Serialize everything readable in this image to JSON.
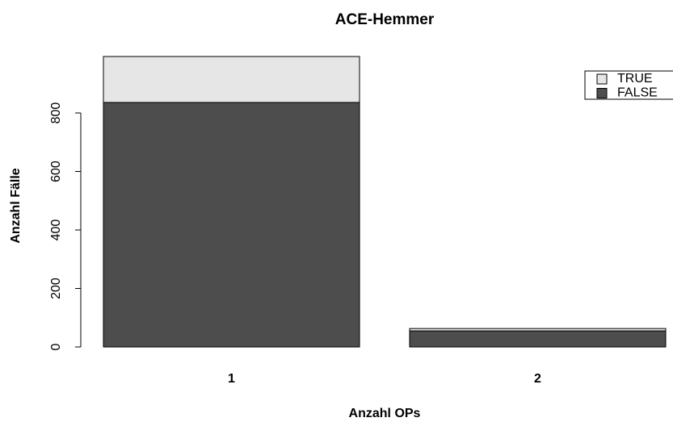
{
  "chart_data": {
    "type": "stacked_bar",
    "title": "ACE-Hemmer",
    "x_label": "Anzahl OPs",
    "y_label": "Anzahl Fälle",
    "categories": [
      "1",
      "2"
    ],
    "series": [
      {
        "name": "FALSE",
        "color": "#4d4d4d",
        "values": [
          836,
          55
        ]
      },
      {
        "name": "TRUE",
        "color": "#e6e6e6",
        "values": [
          157,
          8
        ]
      }
    ],
    "ylim": [
      0,
      1000
    ],
    "yticks": [
      0,
      200,
      400,
      600,
      800
    ],
    "legend": "topright"
  }
}
